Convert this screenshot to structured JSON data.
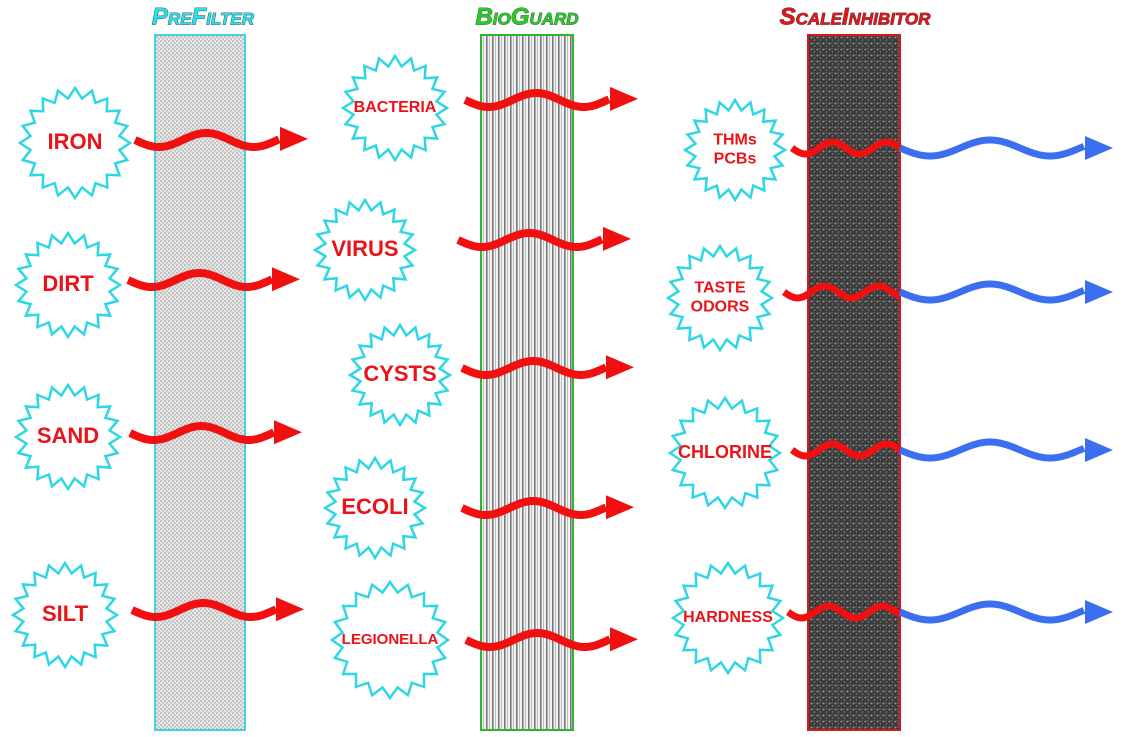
{
  "columns": [
    {
      "title": "PreFilter",
      "items": [
        [
          "IRON"
        ],
        [
          "DIRT"
        ],
        [
          "SAND"
        ],
        [
          "SILT"
        ]
      ]
    },
    {
      "title": "BioGuard",
      "items": [
        [
          "BACTERIA"
        ],
        [
          "VIRUS"
        ],
        [
          "CYSTS"
        ],
        [
          "ECOLI"
        ],
        [
          "LEGIONELLA"
        ]
      ]
    },
    {
      "title": "ScaleInhibitor",
      "items": [
        [
          "THMs",
          "PCBs"
        ],
        [
          "TASTE",
          "ODORS"
        ],
        [
          "CHLORINE"
        ],
        [
          "HARDNESS"
        ]
      ]
    }
  ]
}
